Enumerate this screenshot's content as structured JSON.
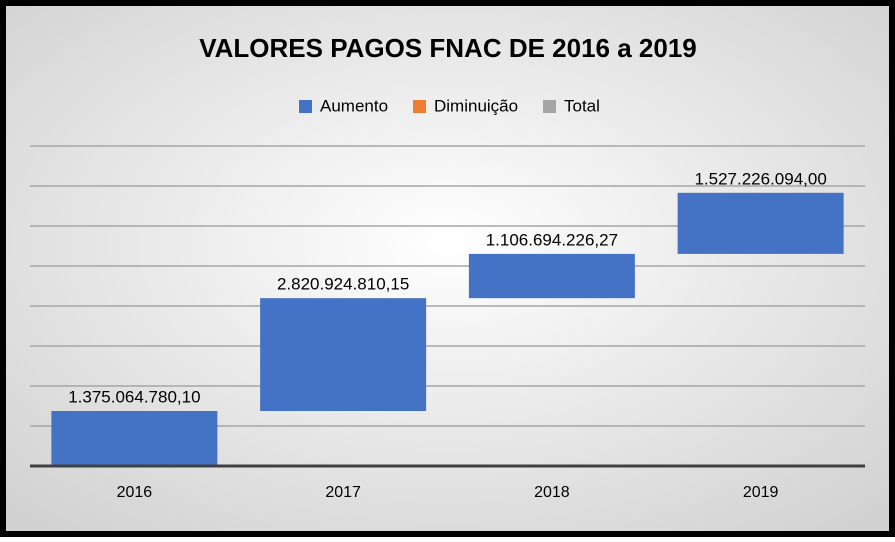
{
  "chart_data": {
    "type": "waterfall",
    "title": "VALORES PAGOS FNAC DE 2016 a 2019",
    "categories": [
      "2016",
      "2017",
      "2018",
      "2019"
    ],
    "values": [
      1375064780.1,
      2820924810.15,
      1106694226.27,
      1527226094.0
    ],
    "value_labels": [
      "1.375.064.780,10",
      "2.820.924.810,15",
      "1.106.694.226,27",
      "1.527.226.094,00"
    ],
    "color": "#4472c4",
    "legend": [
      {
        "name": "Aumento",
        "color": "#4472c4"
      },
      {
        "name": "Diminuição",
        "color": "#ed7d31"
      },
      {
        "name": "Total",
        "color": "#a5a5a5"
      }
    ],
    "ylim": [
      0,
      8000000000
    ],
    "yticks": [
      0,
      1000000000,
      2000000000,
      3000000000,
      4000000000,
      5000000000,
      6000000000,
      7000000000,
      8000000000
    ],
    "grid": true
  }
}
